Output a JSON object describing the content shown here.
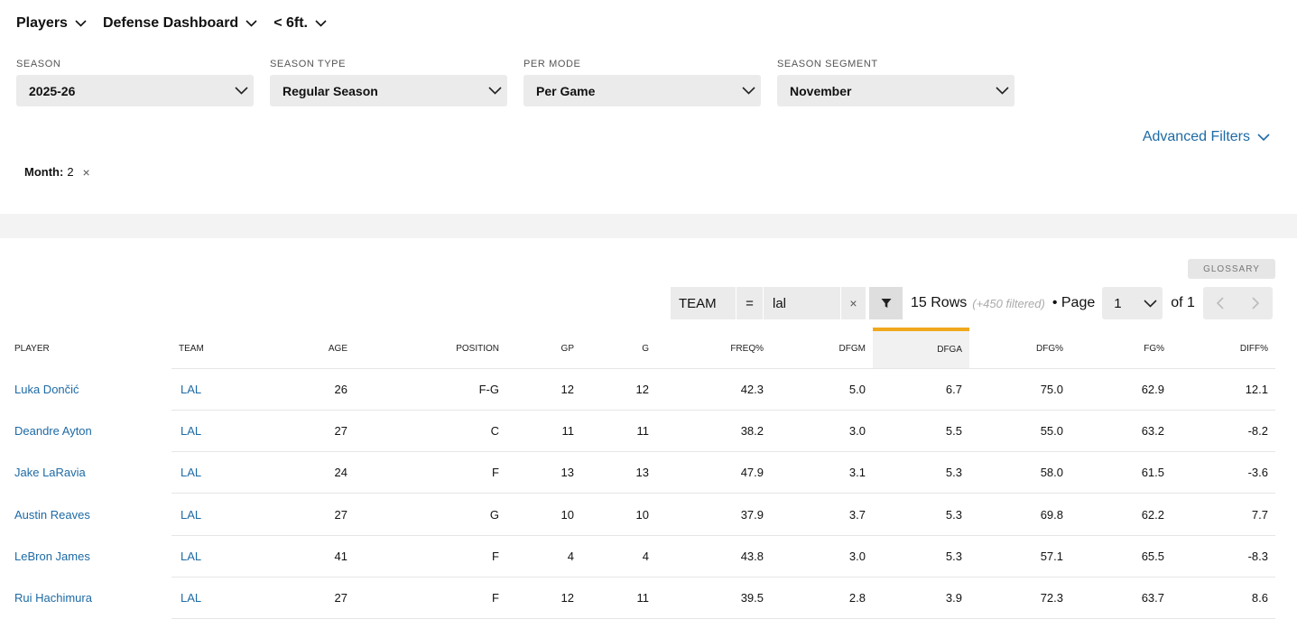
{
  "nav": {
    "items": [
      "Players",
      "Defense Dashboard",
      "< 6ft."
    ]
  },
  "filters": [
    {
      "label": "SEASON",
      "value": "2025-26"
    },
    {
      "label": "SEASON TYPE",
      "value": "Regular Season"
    },
    {
      "label": "PER MODE",
      "value": "Per Game"
    },
    {
      "label": "SEASON SEGMENT",
      "value": "November"
    }
  ],
  "advanced_filters_label": "Advanced Filters",
  "active_filter": {
    "key": "Month:",
    "value": "2",
    "remove": "×"
  },
  "glossary_label": "GLOSSARY",
  "table_filter": {
    "column": "TEAM",
    "operator": "=",
    "value": "lal",
    "clear": "×"
  },
  "rows_info": {
    "rows": "15 Rows",
    "filtered": "(+450 filtered)",
    "page_label": "• Page",
    "page_value": "1",
    "of_label": "of 1"
  },
  "table": {
    "columns": [
      "PLAYER",
      "TEAM",
      "AGE",
      "POSITION",
      "GP",
      "G",
      "FREQ%",
      "DFGM",
      "DFGA",
      "DFG%",
      "FG%",
      "DIFF%"
    ],
    "rows": [
      [
        "Luka Dončić",
        "LAL",
        "26",
        "F-G",
        "12",
        "12",
        "42.3",
        "5.0",
        "6.7",
        "75.0",
        "62.9",
        "12.1"
      ],
      [
        "Deandre Ayton",
        "LAL",
        "27",
        "C",
        "11",
        "11",
        "38.2",
        "3.0",
        "5.5",
        "55.0",
        "63.2",
        "-8.2"
      ],
      [
        "Jake LaRavia",
        "LAL",
        "24",
        "F",
        "13",
        "13",
        "47.9",
        "3.1",
        "5.3",
        "58.0",
        "61.5",
        "-3.6"
      ],
      [
        "Austin Reaves",
        "LAL",
        "27",
        "G",
        "10",
        "10",
        "37.9",
        "3.7",
        "5.3",
        "69.8",
        "62.2",
        "7.7"
      ],
      [
        "LeBron James",
        "LAL",
        "41",
        "F",
        "4",
        "4",
        "43.8",
        "3.0",
        "5.3",
        "57.1",
        "65.5",
        "-8.3"
      ],
      [
        "Rui Hachimura",
        "LAL",
        "27",
        "F",
        "12",
        "11",
        "39.5",
        "2.8",
        "3.9",
        "72.3",
        "63.7",
        "8.6"
      ]
    ]
  },
  "colors": {
    "link": "#1d6aa5",
    "sort_accent": "#f0a81c",
    "control_bg": "#ebebeb"
  }
}
